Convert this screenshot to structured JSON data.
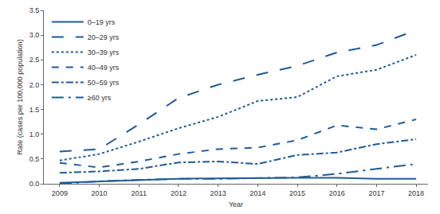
{
  "chart_data": {
    "type": "line",
    "x_label": "Year",
    "y_label": "Rate (cases per 100,000 population)",
    "x": [
      2009,
      2010,
      2011,
      2012,
      2013,
      2014,
      2015,
      2016,
      2017,
      2018
    ],
    "series": [
      {
        "name": "0–19 yrs",
        "color": "#1f5c99",
        "line_style": "solid",
        "values": [
          0.02,
          0.05,
          0.08,
          0.1,
          0.11,
          0.12,
          0.12,
          0.12,
          0.1,
          0.1
        ]
      },
      {
        "name": "20–29 yrs",
        "color": "#1f5c99",
        "line_style": "longdash",
        "values": [
          0.65,
          0.7,
          1.2,
          1.73,
          2.0,
          2.2,
          2.38,
          2.65,
          2.8,
          3.1
        ]
      },
      {
        "name": "30–39 yrs",
        "color": "#1f5c99",
        "line_style": "dot",
        "values": [
          0.47,
          0.6,
          0.85,
          1.12,
          1.35,
          1.67,
          1.75,
          2.17,
          2.3,
          2.6
        ]
      },
      {
        "name": "40–49 yrs",
        "color": "#1f5c99",
        "line_style": "dash",
        "values": [
          0.42,
          0.33,
          0.45,
          0.6,
          0.7,
          0.73,
          0.88,
          1.18,
          1.1,
          1.3
        ]
      },
      {
        "name": "50–59 yrs",
        "color": "#1f5c99",
        "line_style": "dashdot",
        "values": [
          0.22,
          0.25,
          0.3,
          0.43,
          0.45,
          0.4,
          0.58,
          0.63,
          0.8,
          0.9
        ]
      },
      {
        "name": "≥60 yrs",
        "color": "#1f5c99",
        "line_style": "longdashdot",
        "values": [
          0.0,
          0.05,
          0.08,
          0.1,
          0.1,
          0.12,
          0.13,
          0.2,
          0.3,
          0.4
        ]
      }
    ],
    "xlim": [
      2008.6,
      2018.3
    ],
    "xticks": [
      2009,
      2010,
      2011,
      2012,
      2013,
      2014,
      2015,
      2016,
      2017,
      2018
    ],
    "ylim": [
      0,
      3.5
    ],
    "yticks": [
      {
        "value": 0,
        "label": "0.0"
      },
      0.5,
      {
        "value": 1,
        "label": "1.0"
      },
      1.5,
      {
        "value": 2,
        "label": "2.0"
      },
      2.5,
      {
        "value": 3,
        "label": "3.0"
      },
      3.5
    ],
    "grid": false,
    "legend": "top-left"
  }
}
